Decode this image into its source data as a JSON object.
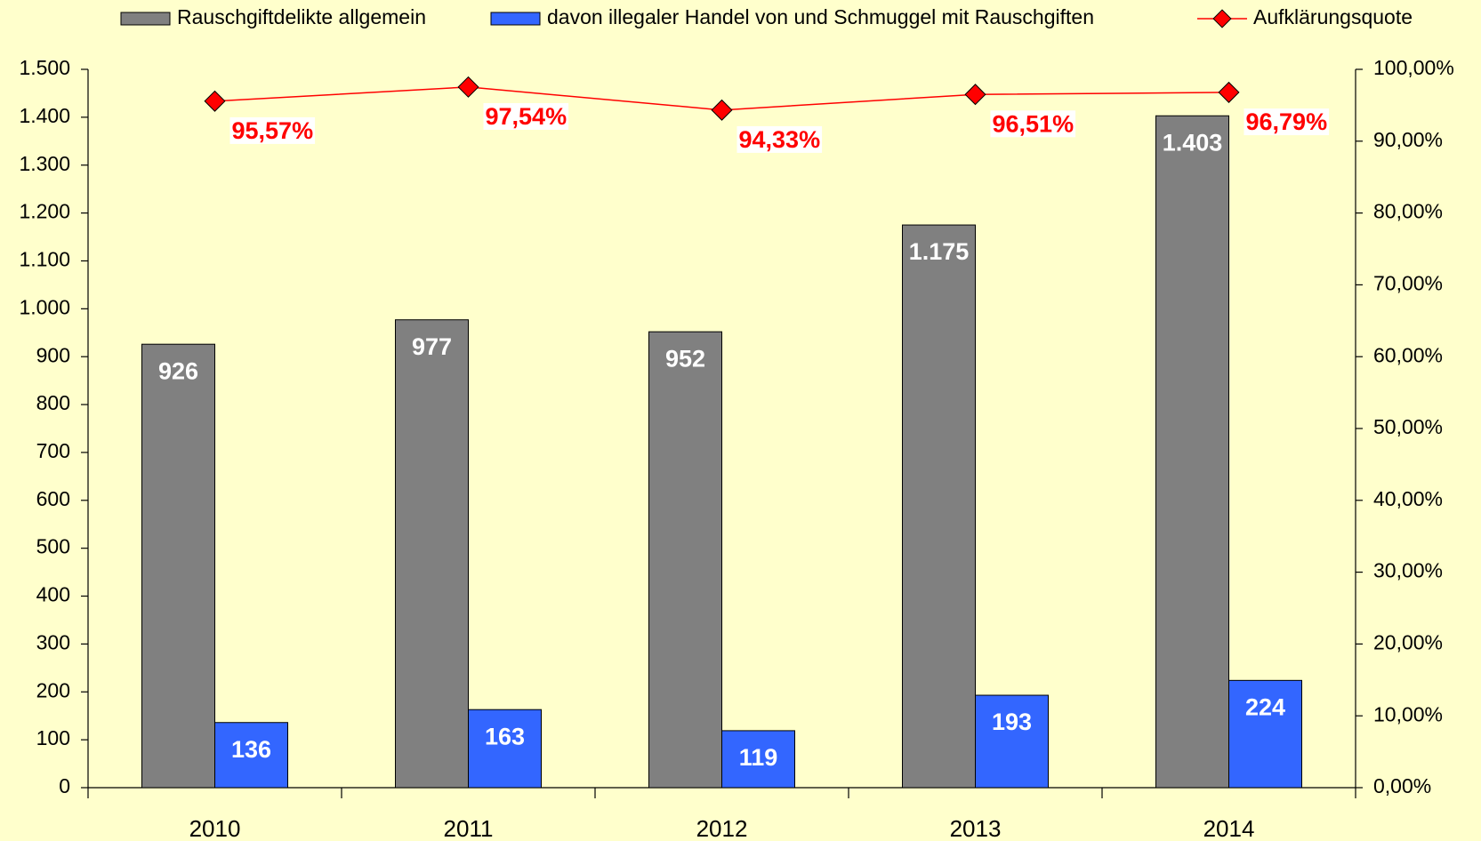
{
  "chart_data": {
    "type": "bar",
    "categories": [
      "2010",
      "2011",
      "2012",
      "2013",
      "2014"
    ],
    "series": [
      {
        "name": "Rauschgiftdelikte allgemein",
        "color": "#808080",
        "values": [
          926,
          977,
          952,
          1175,
          1403
        ],
        "value_labels": [
          "926",
          "977",
          "952",
          "1.175",
          "1.403"
        ]
      },
      {
        "name": "davon illegaler Handel von und Schmuggel mit Rauschgiften",
        "color": "#3366ff",
        "values": [
          136,
          163,
          119,
          193,
          224
        ]
      },
      {
        "name": "Aufklärungsquote",
        "type": "line",
        "axis": "y2",
        "color": "#ff0000",
        "values": [
          95.57,
          97.54,
          94.33,
          96.51,
          96.79
        ],
        "value_labels": [
          "95,57%",
          "97,54%",
          "94,33%",
          "96,51%",
          "96,79%"
        ]
      }
    ],
    "ylim": [
      0,
      1500
    ],
    "yticks": [
      0,
      100,
      200,
      300,
      400,
      500,
      600,
      700,
      800,
      900,
      {
        "value": 1000,
        "label": "1.000"
      },
      {
        "value": 1100,
        "label": "1.100"
      },
      {
        "value": 1200,
        "label": "1.200"
      },
      {
        "value": 1300,
        "label": "1.300"
      },
      {
        "value": 1400,
        "label": "1.400"
      },
      {
        "value": 1500,
        "label": "1.500"
      }
    ],
    "y2lim": [
      0,
      100
    ],
    "y2ticks": [
      {
        "value": 0,
        "label": "0,00%"
      },
      {
        "value": 10,
        "label": "10,00%"
      },
      {
        "value": 20,
        "label": "20,00%"
      },
      {
        "value": 30,
        "label": "30,00%"
      },
      {
        "value": 40,
        "label": "40,00%"
      },
      {
        "value": 50,
        "label": "50,00%"
      },
      {
        "value": 60,
        "label": "60,00%"
      },
      {
        "value": 70,
        "label": "70,00%"
      },
      {
        "value": 80,
        "label": "80,00%"
      },
      {
        "value": 90,
        "label": "90,00%"
      },
      {
        "value": 100,
        "label": "100,00%"
      }
    ],
    "legend": "top",
    "grid": false
  }
}
